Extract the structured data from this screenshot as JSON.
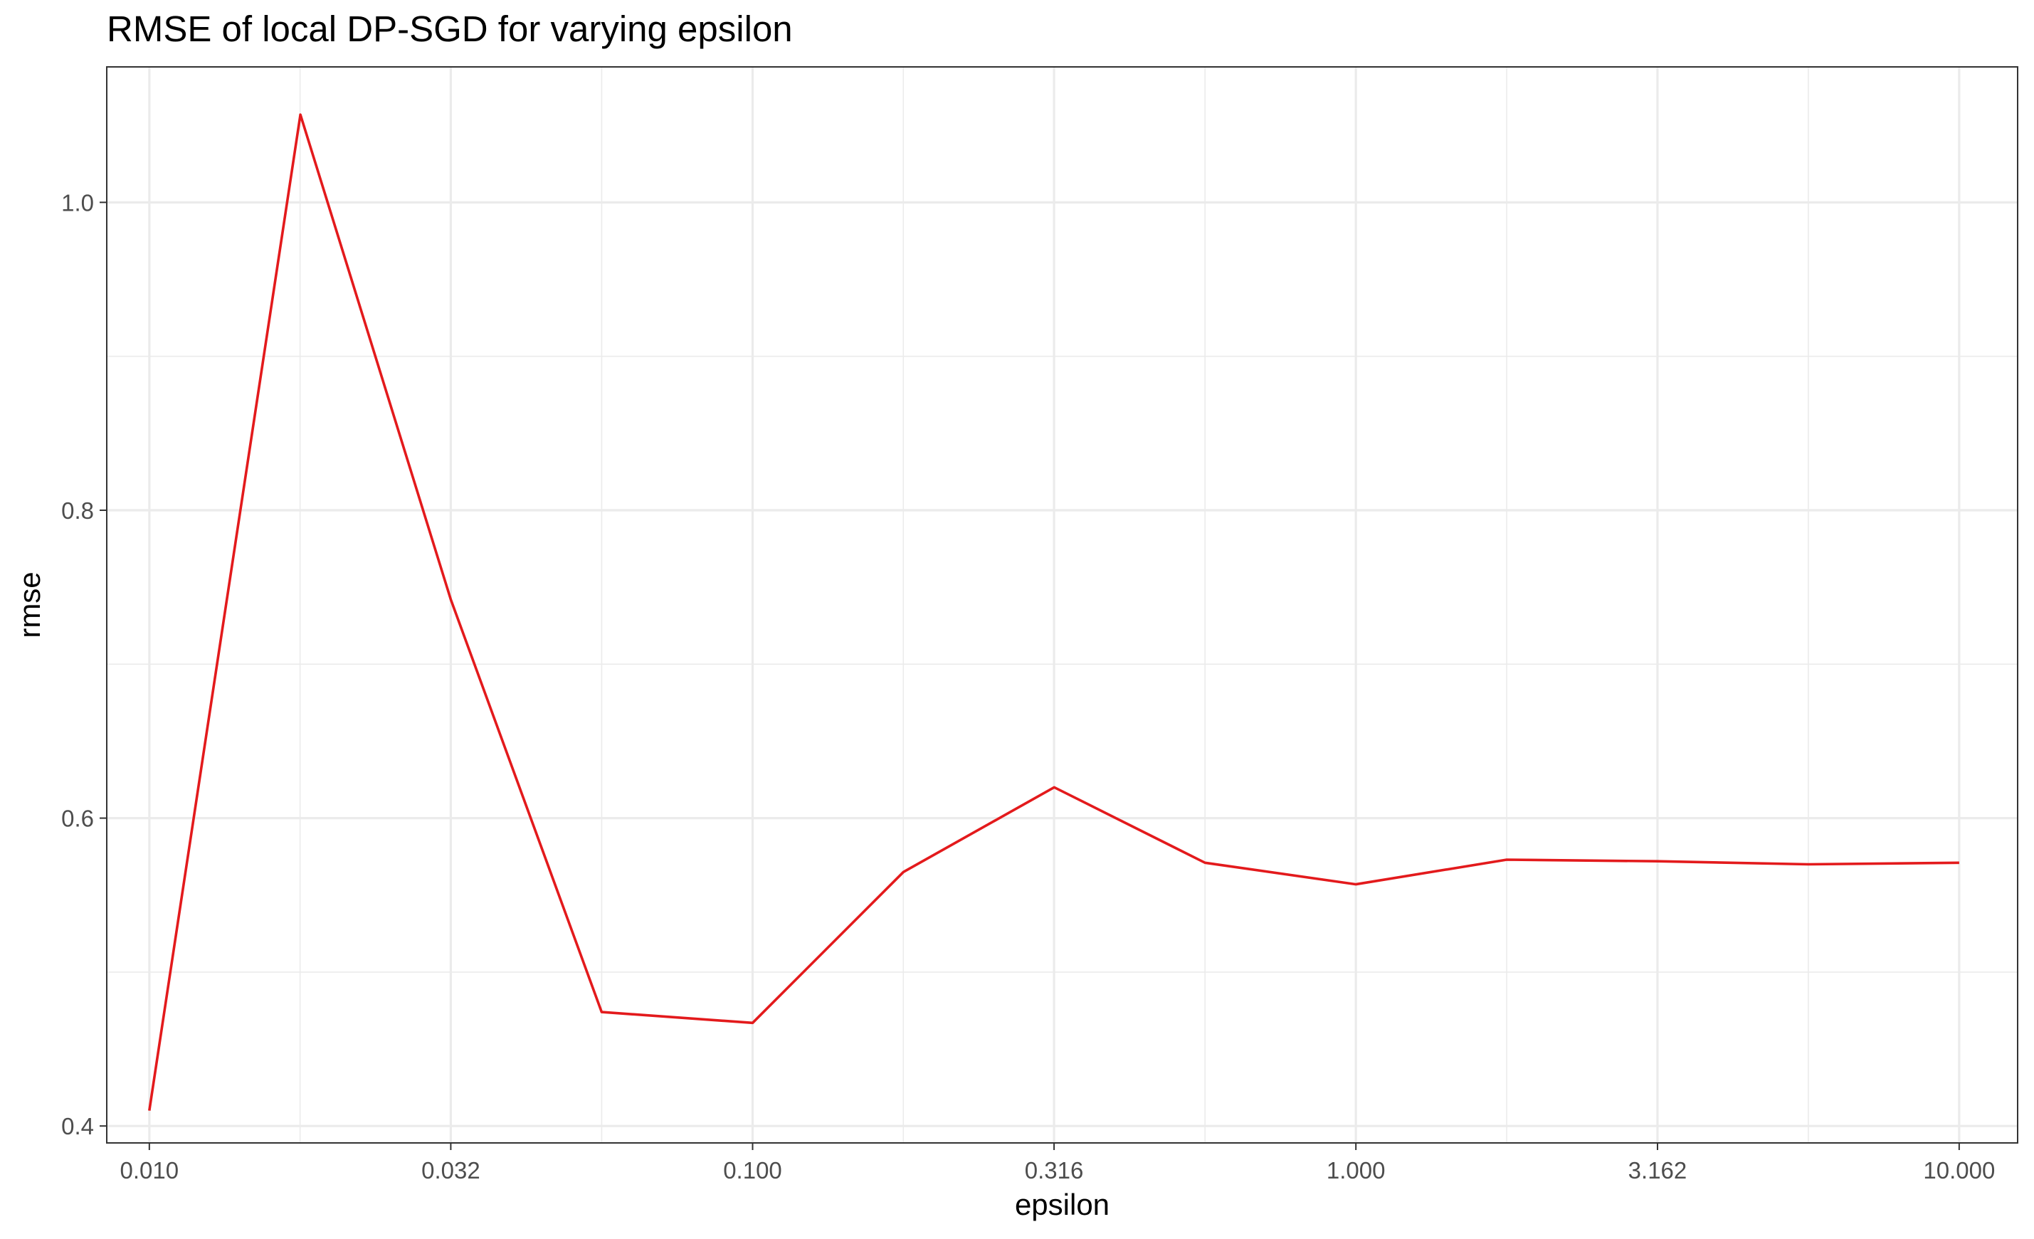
{
  "chart_data": {
    "type": "line",
    "title": "RMSE of local DP-SGD for varying epsilon",
    "xlabel": "epsilon",
    "ylabel": "rmse",
    "x_scale": "log10",
    "xlim": [
      0.0085,
      12.5
    ],
    "ylim": [
      0.389,
      1.088
    ],
    "x_ticks": [
      0.01,
      0.0316,
      0.1,
      0.316,
      1,
      3.162,
      10
    ],
    "x_tick_labels": [
      "0.010",
      "0.032",
      "0.100",
      "0.316",
      "1.000",
      "3.162",
      "10.000"
    ],
    "y_ticks": [
      0.4,
      0.6,
      0.8,
      1.0
    ],
    "y_tick_labels": [
      "0.4",
      "0.6",
      "0.8",
      "1.0"
    ],
    "grid": true,
    "series": [
      {
        "color": "#e31a1c",
        "x": [
          0.01,
          0.0178,
          0.0316,
          0.0562,
          0.1,
          0.1778,
          0.3162,
          0.5623,
          1.0,
          1.7783,
          3.1623,
          5.6234,
          10.0
        ],
        "y": [
          0.41,
          1.057,
          0.742,
          0.474,
          0.467,
          0.565,
          0.62,
          0.571,
          0.557,
          0.573,
          0.572,
          0.57,
          0.571
        ]
      }
    ]
  }
}
